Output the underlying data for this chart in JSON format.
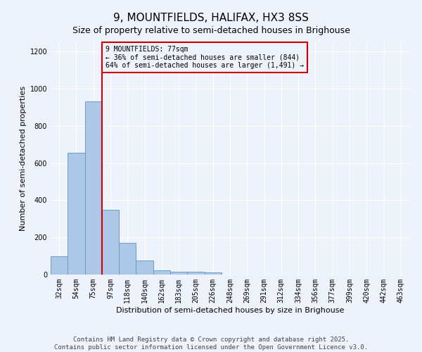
{
  "title": "9, MOUNTFIELDS, HALIFAX, HX3 8SS",
  "subtitle": "Size of property relative to semi-detached houses in Brighouse",
  "xlabel": "Distribution of semi-detached houses by size in Brighouse",
  "ylabel": "Number of semi-detached properties",
  "categories": [
    "32sqm",
    "54sqm",
    "75sqm",
    "97sqm",
    "118sqm",
    "140sqm",
    "162sqm",
    "183sqm",
    "205sqm",
    "226sqm",
    "248sqm",
    "269sqm",
    "291sqm",
    "312sqm",
    "334sqm",
    "356sqm",
    "377sqm",
    "399sqm",
    "420sqm",
    "442sqm",
    "463sqm"
  ],
  "values": [
    100,
    655,
    930,
    350,
    170,
    75,
    22,
    15,
    14,
    10,
    0,
    0,
    0,
    0,
    0,
    0,
    0,
    0,
    0,
    0,
    0
  ],
  "bar_color": "#adc8e6",
  "bar_edge_color": "#6a9dc8",
  "vline_color": "#cc0000",
  "annotation_title": "9 MOUNTFIELDS: 77sqm",
  "annotation_line2": "← 36% of semi-detached houses are smaller (844)",
  "annotation_line3": "64% of semi-detached houses are larger (1,491) →",
  "annotation_box_color": "#cc0000",
  "ylim": [
    0,
    1250
  ],
  "yticks": [
    0,
    200,
    400,
    600,
    800,
    1000,
    1200
  ],
  "background_color": "#eef2fb",
  "footer_line1": "Contains HM Land Registry data © Crown copyright and database right 2025.",
  "footer_line2": "Contains public sector information licensed under the Open Government Licence v3.0.",
  "title_fontsize": 11,
  "subtitle_fontsize": 9,
  "axis_label_fontsize": 8,
  "tick_fontsize": 7,
  "footer_fontsize": 6.5
}
